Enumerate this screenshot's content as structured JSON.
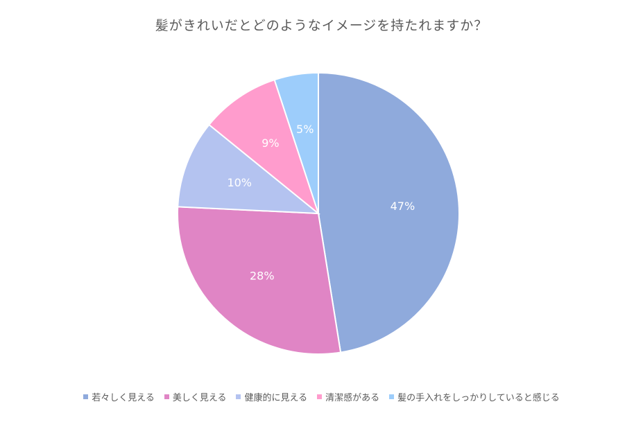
{
  "chart_data": {
    "type": "pie",
    "title": "髪がきれいだとどのようなイメージを持たれますか？",
    "categories": [
      "若々しく見える",
      "美しく見える",
      "健康的に見える",
      "清潔感がある",
      "髪の手入れをしっかりしていると感じる"
    ],
    "values": [
      47,
      28,
      10,
      9,
      5
    ],
    "labels": [
      "47%",
      "28%",
      "10%",
      "9%",
      "5%"
    ],
    "colors": [
      "#8faadc",
      "#e085c5",
      "#b4c3f0",
      "#ff9ccd",
      "#9dcdfb"
    ],
    "legend_position": "bottom"
  }
}
